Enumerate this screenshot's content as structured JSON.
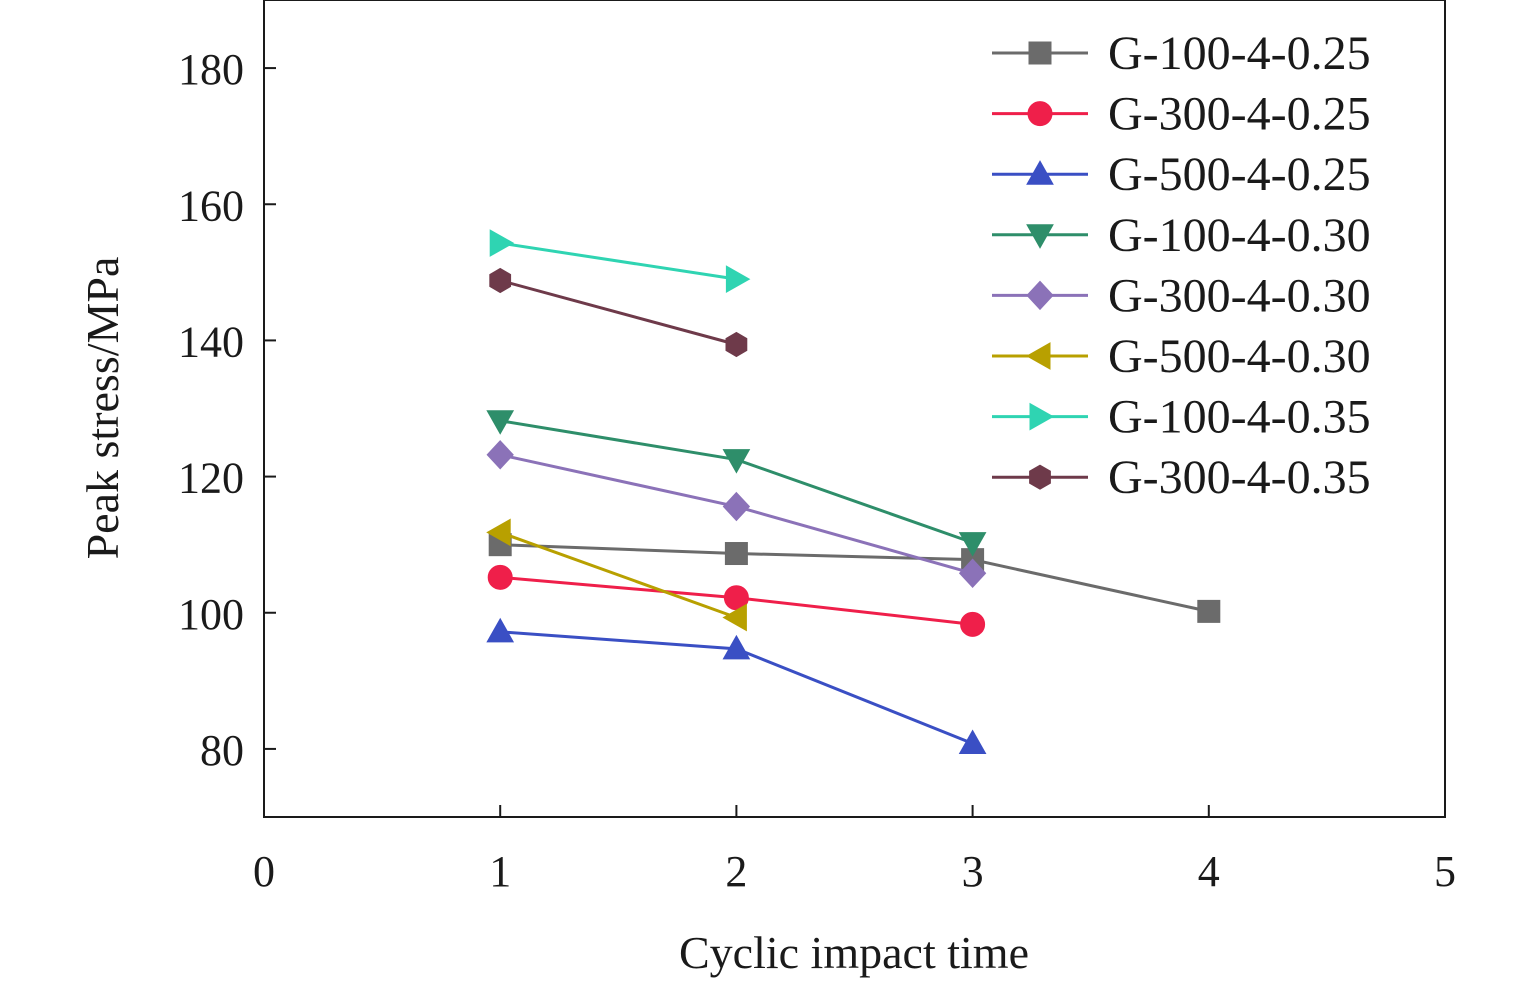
{
  "chart_data": {
    "type": "line",
    "title": "",
    "xlabel": "Cyclic impact time",
    "ylabel": "Peak stress/MPa",
    "xlim": [
      0,
      5
    ],
    "ylim": [
      70,
      190
    ],
    "xticks": [
      "0",
      "1",
      "2",
      "3",
      "4",
      "5"
    ],
    "yticks": [
      "80",
      "100",
      "120",
      "140",
      "160",
      "180"
    ],
    "grid": false,
    "legend_position": "top-right",
    "series": [
      {
        "name": "G-100-4-0.25",
        "color": "#6b6b6b",
        "marker": "square",
        "x": [
          1,
          2,
          3,
          4
        ],
        "y": [
          110.0,
          108.7,
          107.8,
          100.2
        ]
      },
      {
        "name": "G-300-4-0.25",
        "color": "#ef1f4a",
        "marker": "circle",
        "x": [
          1,
          2,
          3
        ],
        "y": [
          105.2,
          102.2,
          98.3
        ]
      },
      {
        "name": "G-500-4-0.25",
        "color": "#3a4fc4",
        "marker": "triangle-up",
        "x": [
          1,
          2,
          3
        ],
        "y": [
          97.2,
          94.7,
          80.8
        ]
      },
      {
        "name": "G-100-4-0.30",
        "color": "#2e8e6a",
        "marker": "triangle-down",
        "x": [
          1,
          2,
          3
        ],
        "y": [
          128.2,
          122.5,
          110.3
        ]
      },
      {
        "name": "G-300-4-0.30",
        "color": "#8b72b8",
        "marker": "diamond",
        "x": [
          1,
          2,
          3
        ],
        "y": [
          123.2,
          115.6,
          105.8
        ]
      },
      {
        "name": "G-500-4-0.30",
        "color": "#b8a000",
        "marker": "triangle-left",
        "x": [
          1,
          2
        ],
        "y": [
          111.8,
          99.3
        ]
      },
      {
        "name": "G-100-4-0.35",
        "color": "#2fd4b2",
        "marker": "triangle-right",
        "x": [
          1,
          2
        ],
        "y": [
          154.3,
          149.0
        ]
      },
      {
        "name": "G-300-4-0.35",
        "color": "#6e3a4a",
        "marker": "hexagon",
        "x": [
          1,
          2
        ],
        "y": [
          148.8,
          139.4
        ]
      }
    ]
  }
}
